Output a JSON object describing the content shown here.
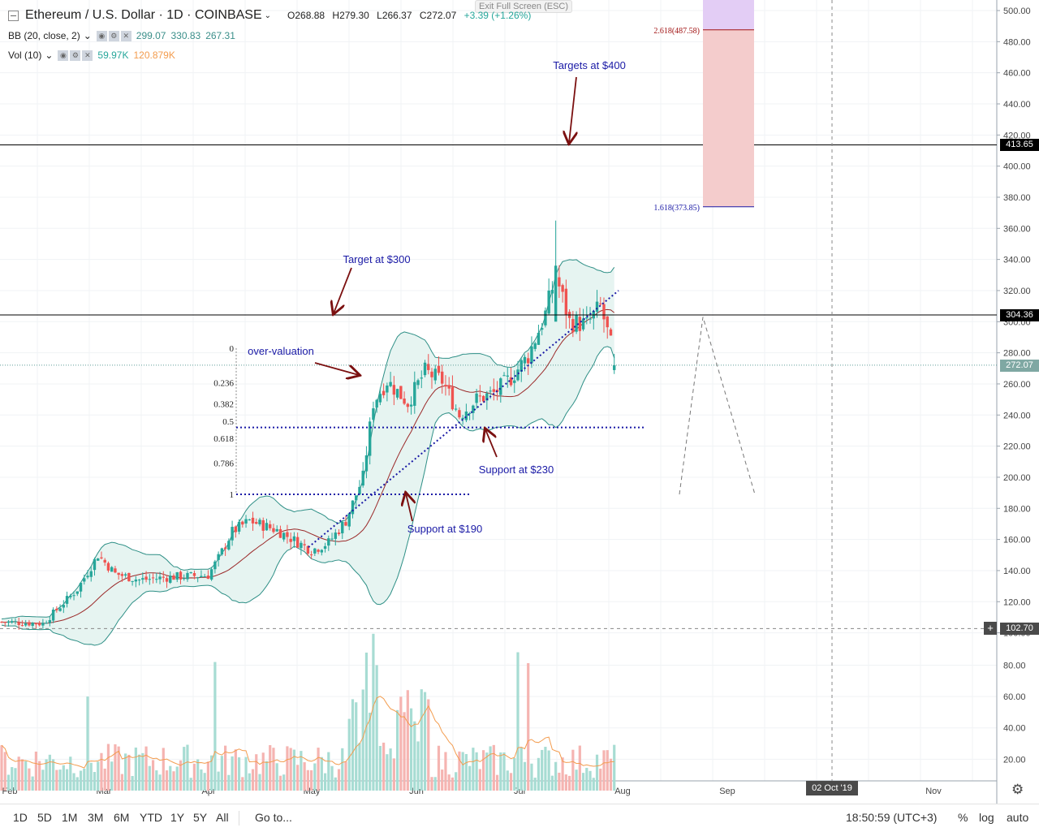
{
  "header": {
    "symbol_title": "Ethereum / U.S. Dollar · 1D · COINBASE",
    "open": "O268.88",
    "high": "H279.30",
    "low": "L266.37",
    "close": "C272.07",
    "change": "+3.39 (+1.26%)",
    "bb_label": "BB (20, close, 2)",
    "bb_values": [
      "299.07",
      "330.83",
      "267.31"
    ],
    "vol_label": "Vol (10)",
    "vol_values": [
      "59.97K",
      "120.879K"
    ],
    "exit_fullscreen": "Exit Full Screen (ESC)"
  },
  "price_tags": {
    "resistance_top": "413.65",
    "resistance_mid": "304.36",
    "last": "272.07",
    "cursor": "102.70"
  },
  "date_tag": "02 Oct '19",
  "bottom": {
    "timeframes": [
      "1D",
      "5D",
      "1M",
      "3M",
      "6M",
      "YTD",
      "1Y",
      "5Y",
      "All"
    ],
    "goto": "Go to...",
    "clock": "18:50:59 (UTC+3)",
    "percent": "%",
    "log": "log",
    "auto": "auto"
  },
  "colors": {
    "up": "#26a69a",
    "down": "#ef5350",
    "annotation": "#1a1aa6",
    "arrow": "#7b1010",
    "band_fill": "#e6f4f1"
  },
  "chart_data": {
    "type": "candlestick",
    "x_axis_labels": [
      "Feb",
      "Mar",
      "Apr",
      "May",
      "Jun",
      "Jul",
      "Aug",
      "Sep",
      "Nov"
    ],
    "y_axis_price": [
      100,
      120,
      140,
      160,
      180,
      200,
      220,
      240,
      260,
      280,
      300,
      320,
      340,
      360,
      380,
      400,
      420,
      440,
      460,
      480,
      500
    ],
    "y_axis_price_labels": [
      "100.00",
      "120.00",
      "140.00",
      "160.00",
      "180.00",
      "200.00",
      "220.00",
      "240.00",
      "260.00",
      "280.00",
      "300.00",
      "320.00",
      "340.00",
      "360.00",
      "380.00",
      "400.00",
      "420.00",
      "440.00",
      "460.00",
      "480.00",
      "500.00"
    ],
    "y_axis_volume_labels": [
      "20.00",
      "40.00",
      "60.00",
      "80.00"
    ],
    "y_axis_volume": [
      20,
      40,
      60,
      80
    ],
    "volume_unit": "K",
    "annotations": {
      "targets_400": "Targets at $400",
      "target_300": "Target at $300",
      "over_valuation": "over-valuation",
      "support_230": "Support at $230",
      "support_190": "Support at $190"
    },
    "fib_levels": [
      {
        "label": "0",
        "value": 0
      },
      {
        "label": "0.236",
        "value": 0.236
      },
      {
        "label": "0.382",
        "value": 0.382
      },
      {
        "label": "0.5",
        "value": 0.5
      },
      {
        "label": "0.618",
        "value": 0.618
      },
      {
        "label": "0.786",
        "value": 0.786
      },
      {
        "label": "1",
        "value": 1
      }
    ],
    "fib_extensions": [
      {
        "label": "2.618(487.58)",
        "price": 487.58
      },
      {
        "label": "1.618(373.85)",
        "price": 373.85
      }
    ],
    "horizontal_lines": [
      413.65,
      304.36
    ],
    "support_lines": [
      232,
      189
    ],
    "last_price": 272.07,
    "series": [
      {
        "name": "price",
        "ohlc_note": "daily candles Feb–Jul 2019",
        "anchors": [
          [
            0,
            107
          ],
          [
            12,
            106
          ],
          [
            22,
            128
          ],
          [
            28,
            150
          ],
          [
            33,
            138
          ],
          [
            40,
            134
          ],
          [
            50,
            136
          ],
          [
            60,
            137
          ],
          [
            63,
            148
          ],
          [
            67,
            165
          ],
          [
            72,
            172
          ],
          [
            80,
            166
          ],
          [
            90,
            153
          ],
          [
            95,
            158
          ],
          [
            100,
            172
          ],
          [
            105,
            200
          ],
          [
            108,
            248
          ],
          [
            112,
            262
          ],
          [
            118,
            248
          ],
          [
            123,
            268
          ],
          [
            128,
            262
          ],
          [
            133,
            240
          ],
          [
            138,
            250
          ],
          [
            143,
            254
          ],
          [
            148,
            264
          ],
          [
            153,
            278
          ],
          [
            158,
            305
          ],
          [
            161,
            330
          ],
          [
            165,
            300
          ],
          [
            170,
            298
          ],
          [
            174,
            310
          ],
          [
            177,
            285
          ],
          [
            178,
            272
          ]
        ]
      }
    ]
  }
}
